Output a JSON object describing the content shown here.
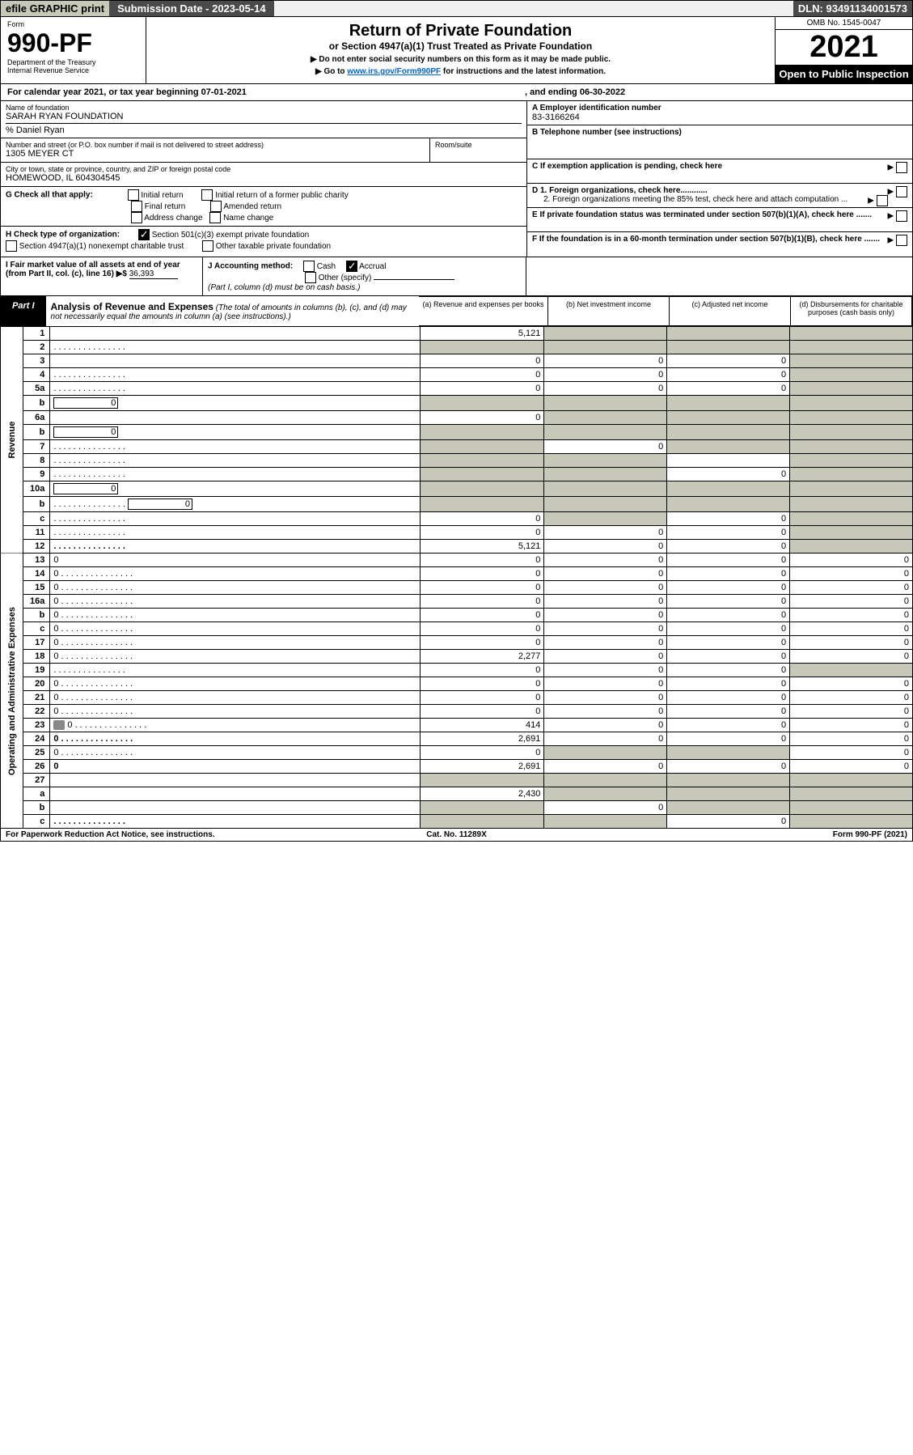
{
  "topbar": {
    "efile": "efile GRAPHIC print",
    "sub_date_lbl": "Submission Date - 2023-05-14",
    "dln": "DLN: 93491134001573"
  },
  "header": {
    "form_lbl": "Form",
    "form_num": "990-PF",
    "dept": "Department of the Treasury",
    "irs": "Internal Revenue Service",
    "title": "Return of Private Foundation",
    "subtitle": "or Section 4947(a)(1) Trust Treated as Private Foundation",
    "instr1": "▶ Do not enter social security numbers on this form as it may be made public.",
    "instr2_pre": "▶ Go to ",
    "instr2_link": "www.irs.gov/Form990PF",
    "instr2_post": " for instructions and the latest information.",
    "omb": "OMB No. 1545-0047",
    "year": "2021",
    "open": "Open to Public Inspection"
  },
  "cal": {
    "text": "For calendar year 2021, or tax year beginning 07-01-2021",
    "end": ", and ending 06-30-2022"
  },
  "info": {
    "name_lbl": "Name of foundation",
    "name": "SARAH RYAN FOUNDATION",
    "care_of": "% Daniel Ryan",
    "addr_lbl": "Number and street (or P.O. box number if mail is not delivered to street address)",
    "addr": "1305 MEYER CT",
    "room_lbl": "Room/suite",
    "city_lbl": "City or town, state or province, country, and ZIP or foreign postal code",
    "city": "HOMEWOOD, IL  604304545",
    "ein_lbl": "A Employer identification number",
    "ein": "83-3166264",
    "tel_lbl": "B Telephone number (see instructions)",
    "c_lbl": "C If exemption application is pending, check here",
    "d1": "D 1. Foreign organizations, check here............",
    "d2": "2. Foreign organizations meeting the 85% test, check here and attach computation ...",
    "e_lbl": "E  If private foundation status was terminated under section 507(b)(1)(A), check here .......",
    "f_lbl": "F  If the foundation is in a 60-month termination under section 507(b)(1)(B), check here .......",
    "g_lbl": "G Check all that apply:",
    "g_opts": [
      "Initial return",
      "Initial return of a former public charity",
      "Final return",
      "Amended return",
      "Address change",
      "Name change"
    ],
    "h_lbl": "H Check type of organization:",
    "h1": "Section 501(c)(3) exempt private foundation",
    "h2": "Section 4947(a)(1) nonexempt charitable trust",
    "h3": "Other taxable private foundation",
    "i_lbl": "I Fair market value of all assets at end of year (from Part II, col. (c), line 16) ▶$",
    "i_val": "36,393",
    "j_lbl": "J Accounting method:",
    "j1": "Cash",
    "j2": "Accrual",
    "j3": "Other (specify)",
    "j_note": "(Part I, column (d) must be on cash basis.)"
  },
  "part1": {
    "lbl": "Part I",
    "title": "Analysis of Revenue and Expenses",
    "sub": " (The total of amounts in columns (b), (c), and (d) may not necessarily equal the amounts in column (a) (see instructions).)",
    "col_a": "(a) Revenue and expenses per books",
    "col_b": "(b) Net investment income",
    "col_c": "(c) Adjusted net income",
    "col_d": "(d) Disbursements for charitable purposes (cash basis only)"
  },
  "sections": {
    "revenue": "Revenue",
    "expenses": "Operating and Administrative Expenses"
  },
  "rows": [
    {
      "n": "1",
      "d": "",
      "a": "5,121",
      "b": "",
      "c": "",
      "shade_b": true,
      "shade_c": true,
      "shade_d": true
    },
    {
      "n": "2",
      "d": "",
      "dots": true,
      "a": "",
      "b": "",
      "c": "",
      "shade_a": true,
      "shade_b": true,
      "shade_c": true,
      "shade_d": true
    },
    {
      "n": "3",
      "d": "",
      "a": "0",
      "b": "0",
      "c": "0",
      "shade_d": true
    },
    {
      "n": "4",
      "d": "",
      "dots": true,
      "a": "0",
      "b": "0",
      "c": "0",
      "shade_d": true
    },
    {
      "n": "5a",
      "d": "",
      "dots": true,
      "a": "0",
      "b": "0",
      "c": "0",
      "shade_d": true
    },
    {
      "n": "b",
      "d": "",
      "inline_val": "0",
      "a": "",
      "b": "",
      "c": "",
      "shade_a": true,
      "shade_b": true,
      "shade_c": true,
      "shade_d": true
    },
    {
      "n": "6a",
      "d": "",
      "a": "0",
      "b": "",
      "c": "",
      "shade_b": true,
      "shade_c": true,
      "shade_d": true
    },
    {
      "n": "b",
      "d": "",
      "inline_val": "0",
      "a": "",
      "b": "",
      "c": "",
      "shade_a": true,
      "shade_b": true,
      "shade_c": true,
      "shade_d": true
    },
    {
      "n": "7",
      "d": "",
      "dots": true,
      "a": "",
      "b": "0",
      "c": "",
      "shade_a": true,
      "shade_c": true,
      "shade_d": true
    },
    {
      "n": "8",
      "d": "",
      "dots": true,
      "a": "",
      "b": "",
      "c": "",
      "shade_a": true,
      "shade_b": true,
      "shade_d": true
    },
    {
      "n": "9",
      "d": "",
      "dots": true,
      "a": "",
      "b": "",
      "c": "0",
      "shade_a": true,
      "shade_b": true,
      "shade_d": true
    },
    {
      "n": "10a",
      "d": "",
      "inline_val": "0",
      "a": "",
      "b": "",
      "c": "",
      "shade_a": true,
      "shade_b": true,
      "shade_c": true,
      "shade_d": true
    },
    {
      "n": "b",
      "d": "",
      "inline_val": "0",
      "dots": true,
      "a": "",
      "b": "",
      "c": "",
      "shade_a": true,
      "shade_b": true,
      "shade_c": true,
      "shade_d": true
    },
    {
      "n": "c",
      "d": "",
      "dots": true,
      "a": "0",
      "b": "",
      "c": "0",
      "shade_b": true,
      "shade_d": true
    },
    {
      "n": "11",
      "d": "",
      "dots": true,
      "a": "0",
      "b": "0",
      "c": "0",
      "shade_d": true
    },
    {
      "n": "12",
      "d": "",
      "dots": true,
      "bold": true,
      "a": "5,121",
      "b": "0",
      "c": "0",
      "shade_d": true
    },
    {
      "n": "13",
      "d": "0",
      "a": "0",
      "b": "0",
      "c": "0"
    },
    {
      "n": "14",
      "d": "0",
      "dots": true,
      "a": "0",
      "b": "0",
      "c": "0"
    },
    {
      "n": "15",
      "d": "0",
      "dots": true,
      "a": "0",
      "b": "0",
      "c": "0"
    },
    {
      "n": "16a",
      "d": "0",
      "dots": true,
      "a": "0",
      "b": "0",
      "c": "0"
    },
    {
      "n": "b",
      "d": "0",
      "dots": true,
      "a": "0",
      "b": "0",
      "c": "0"
    },
    {
      "n": "c",
      "d": "0",
      "dots": true,
      "a": "0",
      "b": "0",
      "c": "0"
    },
    {
      "n": "17",
      "d": "0",
      "dots": true,
      "a": "0",
      "b": "0",
      "c": "0"
    },
    {
      "n": "18",
      "d": "0",
      "dots": true,
      "a": "2,277",
      "b": "0",
      "c": "0"
    },
    {
      "n": "19",
      "d": "",
      "dots": true,
      "a": "0",
      "b": "0",
      "c": "0",
      "shade_d": true
    },
    {
      "n": "20",
      "d": "0",
      "dots": true,
      "a": "0",
      "b": "0",
      "c": "0"
    },
    {
      "n": "21",
      "d": "0",
      "dots": true,
      "a": "0",
      "b": "0",
      "c": "0"
    },
    {
      "n": "22",
      "d": "0",
      "dots": true,
      "a": "0",
      "b": "0",
      "c": "0"
    },
    {
      "n": "23",
      "d": "0",
      "dots": true,
      "icon": true,
      "a": "414",
      "b": "0",
      "c": "0"
    },
    {
      "n": "24",
      "d": "0",
      "dots": true,
      "bold": true,
      "a": "2,691",
      "b": "0",
      "c": "0"
    },
    {
      "n": "25",
      "d": "0",
      "dots": true,
      "a": "0",
      "b": "",
      "c": "",
      "shade_b": true,
      "shade_c": true
    },
    {
      "n": "26",
      "d": "0",
      "bold": true,
      "a": "2,691",
      "b": "0",
      "c": "0"
    },
    {
      "n": "27",
      "d": "",
      "a": "",
      "b": "",
      "c": "",
      "shade_a": true,
      "shade_b": true,
      "shade_c": true,
      "shade_d": true
    },
    {
      "n": "a",
      "d": "",
      "bold": true,
      "a": "2,430",
      "b": "",
      "c": "",
      "shade_b": true,
      "shade_c": true,
      "shade_d": true
    },
    {
      "n": "b",
      "d": "",
      "bold": true,
      "a": "",
      "b": "0",
      "c": "",
      "shade_a": true,
      "shade_c": true,
      "shade_d": true
    },
    {
      "n": "c",
      "d": "",
      "dots": true,
      "bold": true,
      "a": "",
      "b": "",
      "c": "0",
      "shade_a": true,
      "shade_b": true,
      "shade_d": true
    }
  ],
  "footer": {
    "left": "For Paperwork Reduction Act Notice, see instructions.",
    "mid": "Cat. No. 11289X",
    "right": "Form 990-PF (2021)"
  },
  "colors": {
    "shaded": "#c8c8b8",
    "darkbar": "#4a4a4a",
    "link": "#0066cc"
  }
}
